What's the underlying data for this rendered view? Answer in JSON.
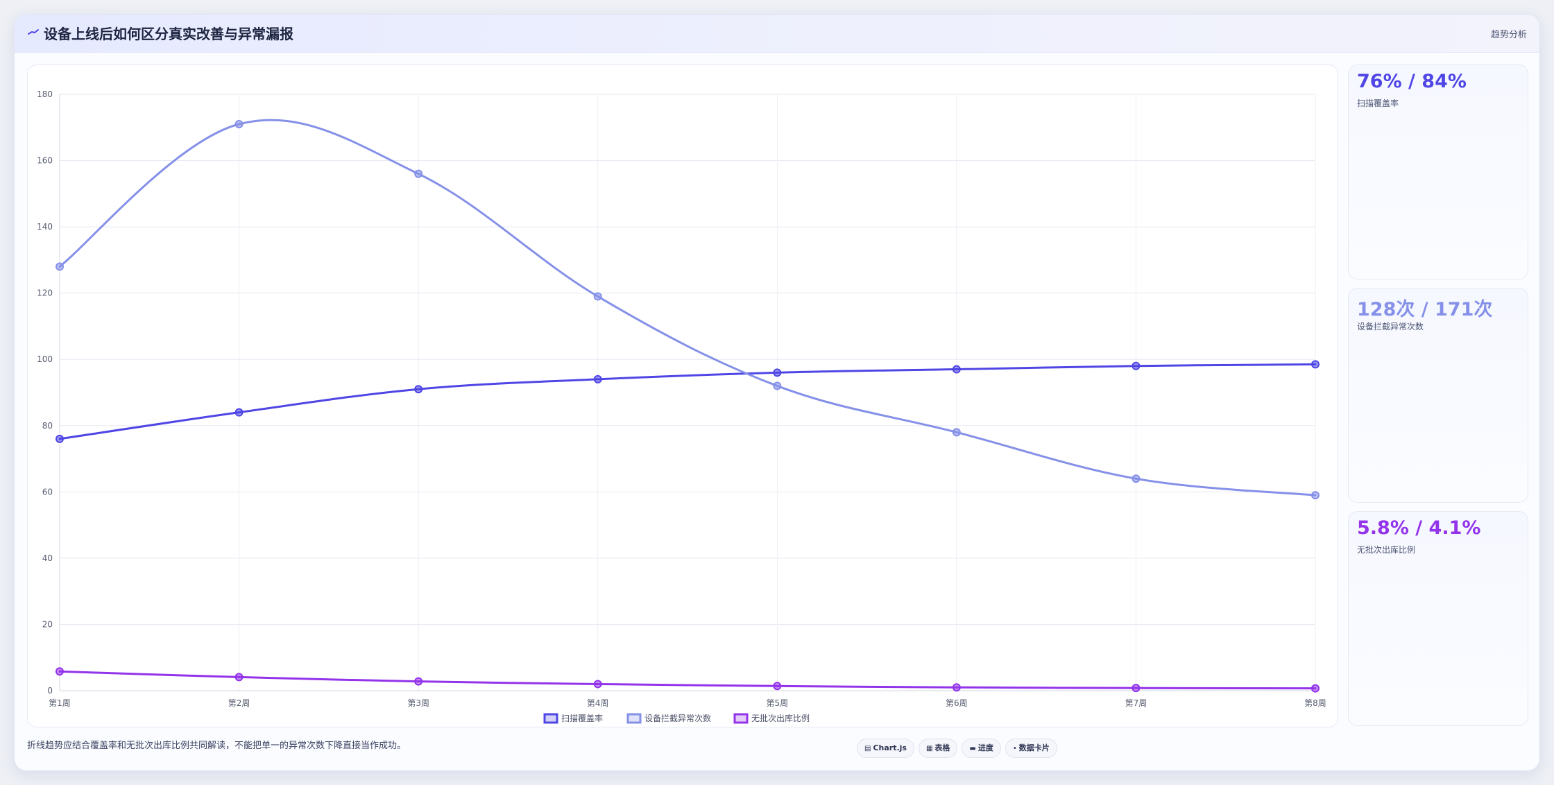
{
  "header": {
    "title": "设备上线后如何区分真实改善与异常漏报",
    "tag": "趋势分析",
    "icon": "trend-line-icon"
  },
  "stats": [
    {
      "value": "76% / 84%",
      "label": "扫描覆盖率",
      "color": "#4f46e5"
    },
    {
      "value": "128次 / 171次",
      "label": "设备拦截异常次数",
      "color": "#8590e8"
    },
    {
      "value": "5.8% / 4.1%",
      "label": "无批次出库比例",
      "color": "#9333ea"
    }
  ],
  "footnote": "折线趋势应结合覆盖率和无批次出库比例共同解读，不能把单一的异常次数下降直接当作成功。",
  "chips": [
    {
      "icon": "chart-icon",
      "glyph": "▤",
      "label": "Chart.js"
    },
    {
      "icon": "table-icon",
      "glyph": "▦",
      "label": "表格"
    },
    {
      "icon": "progress-icon",
      "glyph": "▬",
      "label": "进度"
    },
    {
      "icon": "card-icon",
      "glyph": "•",
      "label": "数据卡片"
    }
  ],
  "chart_data": {
    "type": "line",
    "categories": [
      "第1周",
      "第2周",
      "第3周",
      "第4周",
      "第5周",
      "第6周",
      "第7周",
      "第8周"
    ],
    "series": [
      {
        "name": "扫描覆盖率",
        "color": "#4f46e5",
        "values": [
          76,
          84,
          91,
          94,
          96,
          97,
          98,
          98.5
        ]
      },
      {
        "name": "设备拦截异常次数",
        "color": "#8590e8",
        "values": [
          128,
          171,
          156,
          119,
          92,
          78,
          64,
          59
        ]
      },
      {
        "name": "无批次出库比例",
        "color": "#9333ea",
        "values": [
          5.8,
          4.1,
          2.8,
          2.0,
          1.4,
          1.0,
          0.8,
          0.7
        ]
      }
    ],
    "ylim": [
      0,
      180
    ],
    "yticks": [
      0,
      20,
      40,
      60,
      80,
      100,
      120,
      140,
      160,
      180
    ],
    "grid": true,
    "legend_position": "bottom"
  }
}
